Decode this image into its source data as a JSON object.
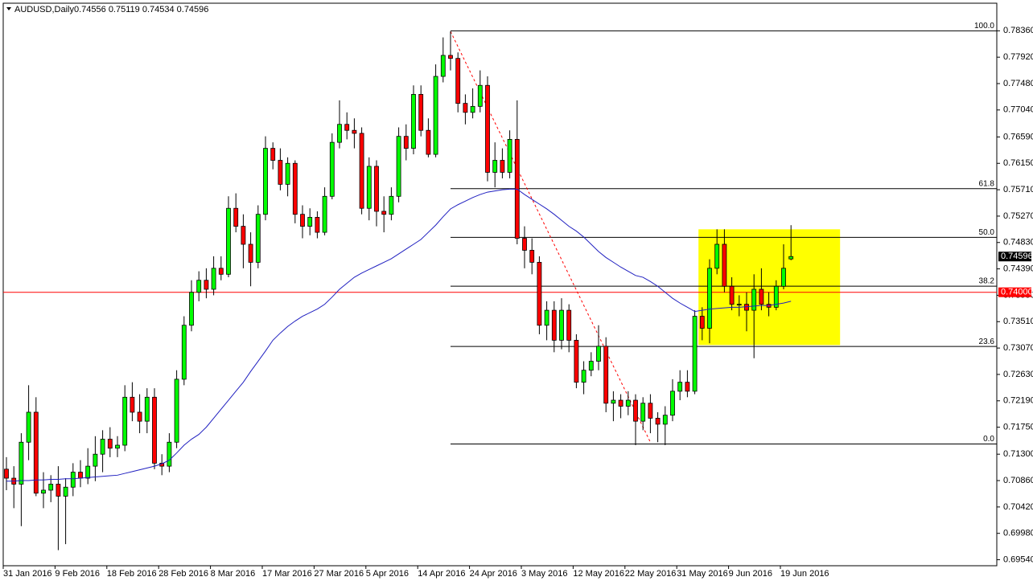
{
  "chart_data": {
    "type": "candlestick",
    "title": "AUDUSD,Daily",
    "subtitle": "0.74556 0.75119 0.74534 0.74596",
    "up_color": "#00ff00",
    "down_color": "#ff0000",
    "ylim": [
      0.6944,
      0.7882
    ],
    "yticks": [
      {
        "value": 0.7836,
        "label": "0.78360"
      },
      {
        "value": 0.7792,
        "label": "0.77920"
      },
      {
        "value": 0.7748,
        "label": "0.77480"
      },
      {
        "value": 0.7704,
        "label": "0.77040"
      },
      {
        "value": 0.7659,
        "label": "0.76590"
      },
      {
        "value": 0.7615,
        "label": "0.76150"
      },
      {
        "value": 0.7571,
        "label": "0.75710"
      },
      {
        "value": 0.7527,
        "label": "0.75270"
      },
      {
        "value": 0.7483,
        "label": "0.74830"
      },
      {
        "value": 0.7439,
        "label": "0.74390"
      },
      {
        "value": 0.7395,
        "label": "0.73950"
      },
      {
        "value": 0.7351,
        "label": "0.73510"
      },
      {
        "value": 0.7307,
        "label": "0.73070"
      },
      {
        "value": 0.7263,
        "label": "0.72630"
      },
      {
        "value": 0.7219,
        "label": "0.72190"
      },
      {
        "value": 0.7175,
        "label": "0.71750"
      },
      {
        "value": 0.713,
        "label": "0.71300"
      },
      {
        "value": 0.7086,
        "label": "0.70860"
      },
      {
        "value": 0.7042,
        "label": "0.70420"
      },
      {
        "value": 0.6998,
        "label": "0.69980"
      },
      {
        "value": 0.6954,
        "label": "0.69540"
      }
    ],
    "x_labels": [
      "31 Jan 2016",
      "9 Feb 2016",
      "18 Feb 2016",
      "28 Feb 2016",
      "8 Mar 2016",
      "17 Mar 2016",
      "27 Mar 2016",
      "5 Apr 2016",
      "14 Apr 2016",
      "24 Apr 2016",
      "3 May 2016",
      "12 May 2016",
      "22 May 2016",
      "31 May 2016",
      "9 Jun 2016",
      "19 Jun 2016"
    ],
    "ohlc": [
      [
        0.7105,
        0.7125,
        0.707,
        0.709
      ],
      [
        0.709,
        0.711,
        0.704,
        0.708
      ],
      [
        0.708,
        0.7165,
        0.701,
        0.715
      ],
      [
        0.715,
        0.7245,
        0.712,
        0.72
      ],
      [
        0.72,
        0.7225,
        0.706,
        0.7065
      ],
      [
        0.7065,
        0.71,
        0.704,
        0.707
      ],
      [
        0.707,
        0.7095,
        0.705,
        0.708
      ],
      [
        0.708,
        0.711,
        0.697,
        0.706
      ],
      [
        0.706,
        0.709,
        0.698,
        0.7075
      ],
      [
        0.7075,
        0.7115,
        0.706,
        0.71
      ],
      [
        0.71,
        0.712,
        0.7075,
        0.709
      ],
      [
        0.709,
        0.714,
        0.708,
        0.711
      ],
      [
        0.711,
        0.716,
        0.7085,
        0.713
      ],
      [
        0.713,
        0.717,
        0.71,
        0.7155
      ],
      [
        0.7155,
        0.7175,
        0.7125,
        0.714
      ],
      [
        0.714,
        0.716,
        0.7125,
        0.7145
      ],
      [
        0.7145,
        0.7245,
        0.7135,
        0.7225
      ],
      [
        0.7225,
        0.725,
        0.7185,
        0.72
      ],
      [
        0.72,
        0.723,
        0.7165,
        0.7185
      ],
      [
        0.7185,
        0.724,
        0.7165,
        0.7225
      ],
      [
        0.7225,
        0.724,
        0.7105,
        0.7115
      ],
      [
        0.7115,
        0.713,
        0.7095,
        0.711
      ],
      [
        0.711,
        0.7165,
        0.71,
        0.715
      ],
      [
        0.715,
        0.727,
        0.714,
        0.7255
      ],
      [
        0.7255,
        0.736,
        0.7245,
        0.7345
      ],
      [
        0.7345,
        0.742,
        0.7335,
        0.74
      ],
      [
        0.74,
        0.7435,
        0.7385,
        0.742
      ],
      [
        0.742,
        0.744,
        0.739,
        0.7405
      ],
      [
        0.7405,
        0.746,
        0.7395,
        0.744
      ],
      [
        0.744,
        0.746,
        0.742,
        0.743
      ],
      [
        0.743,
        0.756,
        0.7425,
        0.754
      ],
      [
        0.754,
        0.7565,
        0.75,
        0.751
      ],
      [
        0.751,
        0.753,
        0.744,
        0.748
      ],
      [
        0.748,
        0.75,
        0.741,
        0.745
      ],
      [
        0.745,
        0.7545,
        0.744,
        0.753
      ],
      [
        0.753,
        0.766,
        0.752,
        0.764
      ],
      [
        0.764,
        0.765,
        0.7605,
        0.762
      ],
      [
        0.762,
        0.764,
        0.757,
        0.758
      ],
      [
        0.758,
        0.7625,
        0.756,
        0.7615
      ],
      [
        0.7615,
        0.762,
        0.7515,
        0.753
      ],
      [
        0.753,
        0.7545,
        0.749,
        0.751
      ],
      [
        0.751,
        0.754,
        0.7495,
        0.7525
      ],
      [
        0.7525,
        0.7535,
        0.749,
        0.75
      ],
      [
        0.75,
        0.7575,
        0.7495,
        0.756
      ],
      [
        0.756,
        0.7665,
        0.7555,
        0.765
      ],
      [
        0.765,
        0.772,
        0.764,
        0.768
      ],
      [
        0.768,
        0.77,
        0.7655,
        0.767
      ],
      [
        0.767,
        0.769,
        0.764,
        0.7665
      ],
      [
        0.7665,
        0.7675,
        0.753,
        0.754
      ],
      [
        0.754,
        0.7625,
        0.752,
        0.761
      ],
      [
        0.761,
        0.762,
        0.751,
        0.7535
      ],
      [
        0.7535,
        0.756,
        0.75,
        0.753
      ],
      [
        0.753,
        0.7575,
        0.752,
        0.756
      ],
      [
        0.756,
        0.7675,
        0.755,
        0.766
      ],
      [
        0.766,
        0.768,
        0.762,
        0.764
      ],
      [
        0.764,
        0.7745,
        0.763,
        0.773
      ],
      [
        0.773,
        0.7745,
        0.766,
        0.767
      ],
      [
        0.767,
        0.769,
        0.7625,
        0.763
      ],
      [
        0.763,
        0.778,
        0.7625,
        0.776
      ],
      [
        0.776,
        0.7825,
        0.775,
        0.7795
      ],
      [
        0.7795,
        0.7835,
        0.777,
        0.779
      ],
      [
        0.779,
        0.78,
        0.77,
        0.7715
      ],
      [
        0.7715,
        0.773,
        0.768,
        0.77
      ],
      [
        0.77,
        0.774,
        0.769,
        0.771
      ],
      [
        0.771,
        0.777,
        0.77,
        0.7745
      ],
      [
        0.7745,
        0.776,
        0.7585,
        0.76
      ],
      [
        0.76,
        0.765,
        0.7575,
        0.762
      ],
      [
        0.762,
        0.764,
        0.759,
        0.76
      ],
      [
        0.76,
        0.767,
        0.759,
        0.7655
      ],
      [
        0.7655,
        0.772,
        0.748,
        0.749
      ],
      [
        0.749,
        0.751,
        0.744,
        0.747
      ],
      [
        0.747,
        0.749,
        0.743,
        0.745
      ],
      [
        0.745,
        0.746,
        0.733,
        0.7345
      ],
      [
        0.7345,
        0.7385,
        0.732,
        0.737
      ],
      [
        0.737,
        0.7385,
        0.73,
        0.732
      ],
      [
        0.732,
        0.739,
        0.7305,
        0.737
      ],
      [
        0.737,
        0.738,
        0.73,
        0.732
      ],
      [
        0.732,
        0.733,
        0.724,
        0.725
      ],
      [
        0.725,
        0.7285,
        0.723,
        0.727
      ],
      [
        0.727,
        0.73,
        0.726,
        0.7285
      ],
      [
        0.7285,
        0.7345,
        0.727,
        0.731
      ],
      [
        0.731,
        0.7325,
        0.72,
        0.7215
      ],
      [
        0.7215,
        0.7235,
        0.7185,
        0.722
      ],
      [
        0.722,
        0.723,
        0.719,
        0.721
      ],
      [
        0.721,
        0.7235,
        0.7195,
        0.722
      ],
      [
        0.722,
        0.723,
        0.7145,
        0.7185
      ],
      [
        0.7185,
        0.7225,
        0.717,
        0.7215
      ],
      [
        0.7215,
        0.723,
        0.7165,
        0.719
      ],
      [
        0.719,
        0.72,
        0.715,
        0.718
      ],
      [
        0.718,
        0.721,
        0.7145,
        0.7195
      ],
      [
        0.7195,
        0.7255,
        0.7185,
        0.7235
      ],
      [
        0.7235,
        0.727,
        0.722,
        0.725
      ],
      [
        0.725,
        0.727,
        0.7225,
        0.7235
      ],
      [
        0.7235,
        0.737,
        0.723,
        0.736
      ],
      [
        0.736,
        0.7375,
        0.732,
        0.734
      ],
      [
        0.734,
        0.7455,
        0.7315,
        0.744
      ],
      [
        0.744,
        0.7505,
        0.743,
        0.748
      ],
      [
        0.748,
        0.7505,
        0.74,
        0.741
      ],
      [
        0.741,
        0.7425,
        0.737,
        0.738
      ],
      [
        0.738,
        0.7395,
        0.736,
        0.738
      ],
      [
        0.738,
        0.74,
        0.7335,
        0.737
      ],
      [
        0.737,
        0.743,
        0.729,
        0.7405
      ],
      [
        0.7405,
        0.744,
        0.737,
        0.738
      ],
      [
        0.738,
        0.74,
        0.736,
        0.7375
      ],
      [
        0.7375,
        0.742,
        0.737,
        0.741
      ],
      [
        0.741,
        0.748,
        0.7405,
        0.744
      ],
      [
        0.74556,
        0.75119,
        0.74534,
        0.74596
      ]
    ],
    "ma": {
      "color": "#2020c0",
      "values": [
        0.7085,
        0.7085,
        0.7086,
        0.7086,
        0.7087,
        0.7087,
        0.7088,
        0.7088,
        0.7089,
        0.7089,
        0.709,
        0.7091,
        0.7092,
        0.7093,
        0.7094,
        0.7095,
        0.7098,
        0.7101,
        0.7104,
        0.7107,
        0.711,
        0.7114,
        0.712,
        0.7132,
        0.7145,
        0.7155,
        0.7163,
        0.7175,
        0.719,
        0.7205,
        0.722,
        0.7235,
        0.725,
        0.7268,
        0.7285,
        0.7302,
        0.732,
        0.7332,
        0.7343,
        0.7352,
        0.736,
        0.7366,
        0.7372,
        0.738,
        0.7392,
        0.7405,
        0.7415,
        0.7425,
        0.7432,
        0.7438,
        0.7444,
        0.745,
        0.7456,
        0.7464,
        0.7472,
        0.748,
        0.7488,
        0.75,
        0.7512,
        0.7526,
        0.7539,
        0.7546,
        0.7552,
        0.7558,
        0.7563,
        0.7567,
        0.7569,
        0.7571,
        0.7572,
        0.7572,
        0.7563,
        0.7555,
        0.7547,
        0.7539,
        0.753,
        0.752,
        0.751,
        0.7502,
        0.7492,
        0.748,
        0.7468,
        0.7458,
        0.745,
        0.7442,
        0.7435,
        0.7428,
        0.7425,
        0.7418,
        0.741,
        0.74,
        0.739,
        0.7382,
        0.7375,
        0.7368,
        0.737,
        0.7372,
        0.7373,
        0.7374,
        0.7375,
        0.7375,
        0.7376,
        0.7377,
        0.7378,
        0.7378,
        0.738,
        0.7382,
        0.7385
      ]
    },
    "fib": {
      "high": 0.7836,
      "low": 0.7147,
      "color": "#000000",
      "levels": [
        {
          "value": 100,
          "label": "100.0"
        },
        {
          "value": 61.8,
          "label": "61.8"
        },
        {
          "value": 50,
          "label": "50.0"
        },
        {
          "value": 38.2,
          "label": "38.2"
        },
        {
          "value": 23.6,
          "label": "23.6"
        },
        {
          "value": 0,
          "label": "0.0"
        }
      ]
    },
    "hline": {
      "value": 0.74,
      "label": "0.74000",
      "color": "#ff0000"
    },
    "last_price": {
      "value": 0.74596,
      "label": "0.74596"
    },
    "zone": {
      "high": 0.7505,
      "low": 0.7312,
      "color": "#ffff00"
    },
    "trendline": {
      "from": 0.7835,
      "to": 0.715,
      "color": "#ff0000"
    }
  }
}
